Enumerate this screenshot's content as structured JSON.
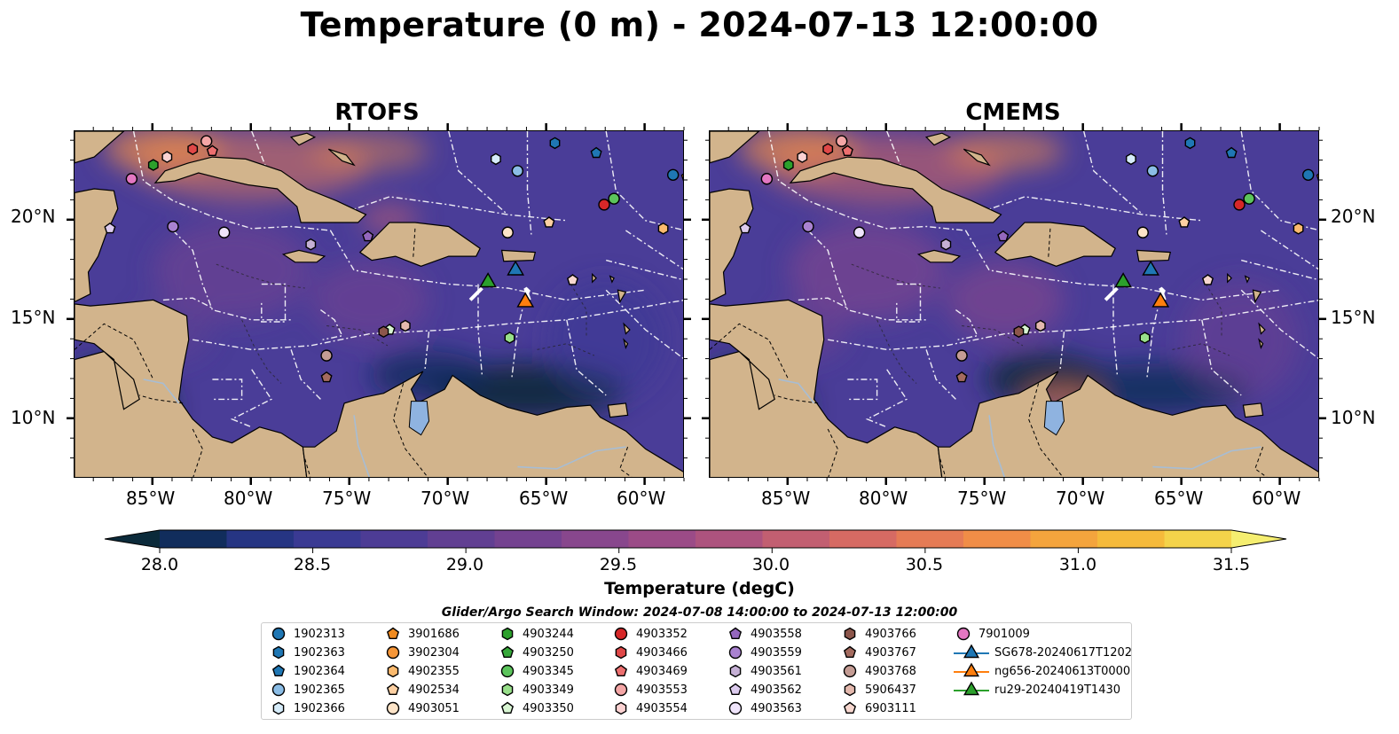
{
  "title": "Temperature (0 m) - 2024-07-13 12:00:00",
  "panels": [
    {
      "title": "RTOFS"
    },
    {
      "title": "CMEMS"
    }
  ],
  "axes": {
    "lon_ticks": [
      "85°W",
      "80°W",
      "75°W",
      "70°W",
      "65°W",
      "60°W"
    ],
    "lat_ticks": [
      "20°N",
      "15°N",
      "10°N"
    ],
    "lon_range": [
      -89,
      -58
    ],
    "lat_range": [
      7,
      24.5
    ]
  },
  "colorbar": {
    "title": "Temperature (degC)",
    "ticks": [
      "28.0",
      "28.5",
      "29.0",
      "29.5",
      "30.0",
      "30.5",
      "31.0",
      "31.5"
    ],
    "range": [
      28.0,
      31.5
    ],
    "extend": "both",
    "colors": [
      "#0b2a3a",
      "#112d5c",
      "#263583",
      "#3a3a93",
      "#4d3c95",
      "#613f92",
      "#744290",
      "#88478d",
      "#9b4b87",
      "#ad537e",
      "#c25f71",
      "#d66a63",
      "#e57b55",
      "#f08d47",
      "#f4a43d",
      "#f5ba3b",
      "#f4d34a",
      "#f5ee70"
    ]
  },
  "colors": {
    "land": "#d2b48c",
    "lakes": "#8fb3e0",
    "rivers": "#a7bdd4",
    "ocean_base": "#4a3d98",
    "white_lines": "#ffffff"
  },
  "search_window": "Glider/Argo Search Window: 2024-07-08 14:00:00 to 2024-07-13 12:00:00",
  "legend": [
    {
      "id": "1902313",
      "marker": "circle",
      "color": "#1f77b4"
    },
    {
      "id": "1902363",
      "marker": "hexagon",
      "color": "#1f77b4"
    },
    {
      "id": "1902364",
      "marker": "pentagon",
      "color": "#1f77b4"
    },
    {
      "id": "1902365",
      "marker": "circle",
      "color": "#8bbde6"
    },
    {
      "id": "1902366",
      "marker": "hexagon",
      "color": "#d6ecfa"
    },
    {
      "id": "3901686",
      "marker": "pentagon",
      "color": "#f08a1f"
    },
    {
      "id": "3902304",
      "marker": "circle",
      "color": "#f59638"
    },
    {
      "id": "4902355",
      "marker": "hexagon",
      "color": "#fbba6e"
    },
    {
      "id": "4902534",
      "marker": "pentagon",
      "color": "#fdd0a2"
    },
    {
      "id": "4903051",
      "marker": "circle",
      "color": "#fde4c8"
    },
    {
      "id": "4903244",
      "marker": "hexagon",
      "color": "#2ca02c"
    },
    {
      "id": "4903250",
      "marker": "pentagon",
      "color": "#36a83a"
    },
    {
      "id": "4903345",
      "marker": "circle",
      "color": "#5cc45c"
    },
    {
      "id": "4903349",
      "marker": "hexagon",
      "color": "#98df8a"
    },
    {
      "id": "4903350",
      "marker": "pentagon",
      "color": "#d8f5d2"
    },
    {
      "id": "4903352",
      "marker": "circle",
      "color": "#d62728"
    },
    {
      "id": "4903466",
      "marker": "hexagon",
      "color": "#e04848"
    },
    {
      "id": "4903469",
      "marker": "pentagon",
      "color": "#ec6f6f"
    },
    {
      "id": "4903553",
      "marker": "circle",
      "color": "#f4a6a6"
    },
    {
      "id": "4903554",
      "marker": "hexagon",
      "color": "#fbd2d2"
    },
    {
      "id": "4903558",
      "marker": "pentagon",
      "color": "#9467bd"
    },
    {
      "id": "4903559",
      "marker": "circle",
      "color": "#a982d0"
    },
    {
      "id": "4903561",
      "marker": "hexagon",
      "color": "#c5b0d5"
    },
    {
      "id": "4903562",
      "marker": "pentagon",
      "color": "#dccbee"
    },
    {
      "id": "4903563",
      "marker": "circle",
      "color": "#efe4fb"
    },
    {
      "id": "4903766",
      "marker": "hexagon",
      "color": "#8c564b"
    },
    {
      "id": "4903767",
      "marker": "pentagon",
      "color": "#a46b5f"
    },
    {
      "id": "4903768",
      "marker": "circle",
      "color": "#c49c94"
    },
    {
      "id": "5906437",
      "marker": "hexagon",
      "color": "#e4b9ae"
    },
    {
      "id": "6903111",
      "marker": "pentagon",
      "color": "#f7d7cf"
    },
    {
      "id": "7901009",
      "marker": "circle",
      "color": "#e377c2"
    },
    {
      "id": "SG678-20240617T1202",
      "marker": "triangle",
      "color": "#1f77b4"
    },
    {
      "id": "ng656-20240613T0000",
      "marker": "triangle",
      "color": "#ff7f0e"
    },
    {
      "id": "ru29-20240419T1430",
      "marker": "triangle",
      "color": "#2ca02c"
    }
  ],
  "floats": [
    {
      "id": "1902313",
      "lon": -58.6,
      "lat": 22.3
    },
    {
      "id": "1902363",
      "lon": -64.6,
      "lat": 23.9
    },
    {
      "id": "1902364",
      "lon": -62.5,
      "lat": 23.4
    },
    {
      "id": "1902365",
      "lon": -66.5,
      "lat": 22.5
    },
    {
      "id": "1902366",
      "lon": -67.6,
      "lat": 23.1
    },
    {
      "id": "3901686",
      "lon": -57.9,
      "lat": 22.2
    },
    {
      "id": "4902355",
      "lon": -59.1,
      "lat": 19.6
    },
    {
      "id": "4902534",
      "lon": -64.9,
      "lat": 19.9
    },
    {
      "id": "4903051",
      "lon": -67.0,
      "lat": 19.4
    },
    {
      "id": "4903244",
      "lon": -85.0,
      "lat": 22.8
    },
    {
      "id": "4903345",
      "lon": -61.6,
      "lat": 21.1
    },
    {
      "id": "4903349",
      "lon": -66.9,
      "lat": 14.1
    },
    {
      "id": "4903350",
      "lon": -73.0,
      "lat": 14.5
    },
    {
      "id": "4903352",
      "lon": -62.1,
      "lat": 20.8
    },
    {
      "id": "4903553",
      "lon": -82.3,
      "lat": 24.0
    },
    {
      "id": "4903554",
      "lon": -84.3,
      "lat": 23.2
    },
    {
      "id": "4903558",
      "lon": -74.1,
      "lat": 19.2
    },
    {
      "id": "4903561",
      "lon": -77.0,
      "lat": 18.8
    },
    {
      "id": "4903562",
      "lon": -87.2,
      "lat": 19.6
    },
    {
      "id": "4903563",
      "lon": -81.4,
      "lat": 19.4
    },
    {
      "id": "4903559",
      "lon": -84.0,
      "lat": 19.7
    },
    {
      "id": "4903766",
      "lon": -73.3,
      "lat": 14.4
    },
    {
      "id": "4903767",
      "lon": -76.2,
      "lat": 12.1
    },
    {
      "id": "4903768",
      "lon": -76.2,
      "lat": 13.2
    },
    {
      "id": "5906437",
      "lon": -72.2,
      "lat": 14.7
    },
    {
      "id": "6903111",
      "lon": -63.7,
      "lat": 17.0
    },
    {
      "id": "4903466",
      "lon": -83.0,
      "lat": 23.6
    },
    {
      "id": "4903469",
      "lon": -82.0,
      "lat": 23.5
    },
    {
      "id": "7901009",
      "lon": -86.1,
      "lat": 22.1
    }
  ],
  "gliders": [
    {
      "id": "SG678-20240617T1202",
      "lon": -66.6,
      "lat": 17.4
    },
    {
      "id": "ng656-20240613T0000",
      "lon": -66.1,
      "lat": 15.8
    },
    {
      "id": "ru29-20240419T1430",
      "lon": -68.0,
      "lat": 16.8
    }
  ]
}
